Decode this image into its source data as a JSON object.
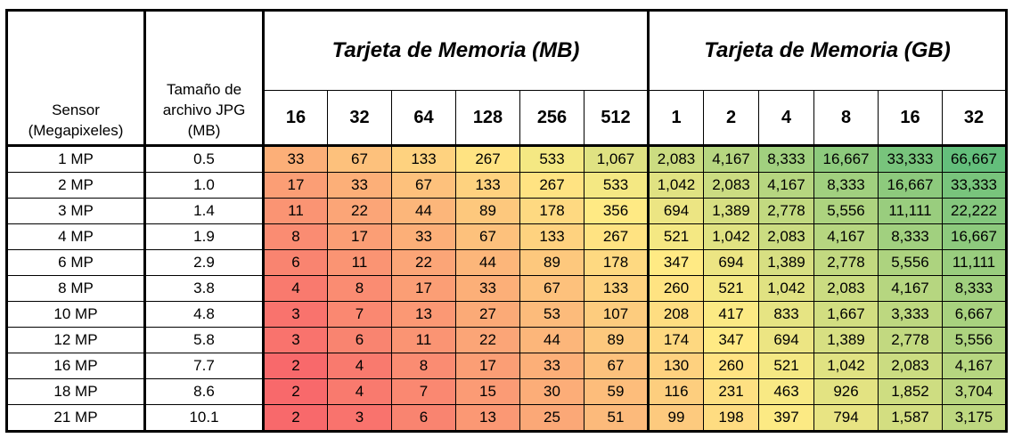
{
  "headers": {
    "sensor": "Sensor (Megapixeles)",
    "jpg_size": "Tamaño de archivo JPG (MB)",
    "mb_group": "Tarjeta de Memoria (MB)",
    "gb_group": "Tarjeta de Memoria (GB)"
  },
  "mb_sizes": [
    "16",
    "32",
    "64",
    "128",
    "256",
    "512"
  ],
  "gb_sizes": [
    "1",
    "2",
    "4",
    "8",
    "16",
    "32"
  ],
  "rows": [
    {
      "sensor": "1 MP",
      "jpg": "0.5",
      "values": [
        "33",
        "67",
        "133",
        "267",
        "533",
        "1,067",
        "2,083",
        "4,167",
        "8,333",
        "16,667",
        "33,333",
        "66,667"
      ]
    },
    {
      "sensor": "2 MP",
      "jpg": "1.0",
      "values": [
        "17",
        "33",
        "67",
        "133",
        "267",
        "533",
        "1,042",
        "2,083",
        "4,167",
        "8,333",
        "16,667",
        "33,333"
      ]
    },
    {
      "sensor": "3 MP",
      "jpg": "1.4",
      "values": [
        "11",
        "22",
        "44",
        "89",
        "178",
        "356",
        "694",
        "1,389",
        "2,778",
        "5,556",
        "11,111",
        "22,222"
      ]
    },
    {
      "sensor": "4 MP",
      "jpg": "1.9",
      "values": [
        "8",
        "17",
        "33",
        "67",
        "133",
        "267",
        "521",
        "1,042",
        "2,083",
        "4,167",
        "8,333",
        "16,667"
      ]
    },
    {
      "sensor": "6 MP",
      "jpg": "2.9",
      "values": [
        "6",
        "11",
        "22",
        "44",
        "89",
        "178",
        "347",
        "694",
        "1,389",
        "2,778",
        "5,556",
        "11,111"
      ]
    },
    {
      "sensor": "8 MP",
      "jpg": "3.8",
      "values": [
        "4",
        "8",
        "17",
        "33",
        "67",
        "133",
        "260",
        "521",
        "1,042",
        "2,083",
        "4,167",
        "8,333"
      ]
    },
    {
      "sensor": "10 MP",
      "jpg": "4.8",
      "values": [
        "3",
        "7",
        "13",
        "27",
        "53",
        "107",
        "208",
        "417",
        "833",
        "1,667",
        "3,333",
        "6,667"
      ]
    },
    {
      "sensor": "12 MP",
      "jpg": "5.8",
      "values": [
        "3",
        "6",
        "11",
        "22",
        "44",
        "89",
        "174",
        "347",
        "694",
        "1,389",
        "2,778",
        "5,556"
      ]
    },
    {
      "sensor": "16 MP",
      "jpg": "7.7",
      "values": [
        "2",
        "4",
        "8",
        "17",
        "33",
        "67",
        "130",
        "260",
        "521",
        "1,042",
        "2,083",
        "4,167"
      ]
    },
    {
      "sensor": "18 MP",
      "jpg": "8.6",
      "values": [
        "2",
        "4",
        "7",
        "15",
        "30",
        "59",
        "116",
        "231",
        "463",
        "926",
        "1,852",
        "3,704"
      ]
    },
    {
      "sensor": "21 MP",
      "jpg": "10.1",
      "values": [
        "2",
        "3",
        "6",
        "13",
        "25",
        "51",
        "99",
        "198",
        "397",
        "794",
        "1,587",
        "3,175"
      ]
    }
  ],
  "colors": {
    "scale_low": "#f8696b",
    "scale_mid": "#ffeb84",
    "scale_high": "#63be7b"
  }
}
